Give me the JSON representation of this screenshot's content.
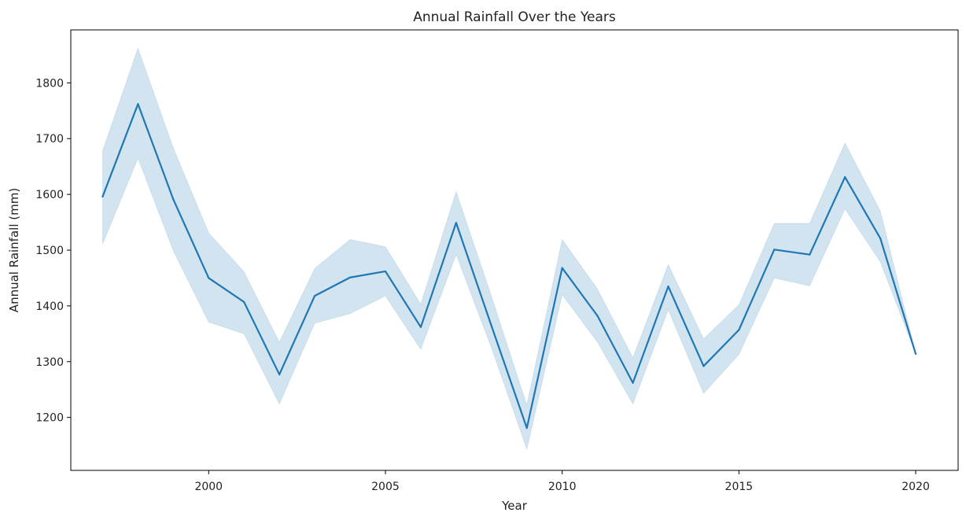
{
  "chart_data": {
    "type": "line",
    "title": "Annual Rainfall Over the Years",
    "xlabel": "Year",
    "ylabel": "Annual Rainfall (mm)",
    "xlim": [
      1996.1,
      2021.2
    ],
    "ylim": [
      1105,
      1895
    ],
    "xticks": [
      2000,
      2005,
      2010,
      2015,
      2020
    ],
    "yticks": [
      1200,
      1300,
      1400,
      1500,
      1600,
      1700,
      1800
    ],
    "grid": false,
    "legend": "none",
    "series": [
      {
        "color": "#1f77b4",
        "band_color": "#1f77b4",
        "x": [
          1997,
          1998,
          1999,
          2000,
          2001,
          2002,
          2003,
          2004,
          2005,
          2006,
          2007,
          2008,
          2009,
          2010,
          2011,
          2012,
          2013,
          2014,
          2015,
          2016,
          2017,
          2018,
          2019,
          2020
        ],
        "values": [
          1596,
          1762,
          1591,
          1450,
          1407,
          1277,
          1418,
          1451,
          1462,
          1362,
          1549,
          1364,
          1181,
          1468,
          1382,
          1262,
          1435,
          1292,
          1357,
          1501,
          1492,
          1631,
          1521,
          1314
        ],
        "upper": [
          1678,
          1862,
          1683,
          1531,
          1461,
          1335,
          1467,
          1519,
          1506,
          1403,
          1605,
          1417,
          1222,
          1519,
          1430,
          1307,
          1474,
          1341,
          1402,
          1548,
          1548,
          1692,
          1570,
          1314
        ],
        "lower": [
          1511,
          1665,
          1499,
          1371,
          1350,
          1224,
          1369,
          1386,
          1418,
          1322,
          1492,
          1325,
          1143,
          1420,
          1335,
          1224,
          1393,
          1243,
          1313,
          1450,
          1436,
          1574,
          1479,
          1314
        ]
      }
    ]
  }
}
